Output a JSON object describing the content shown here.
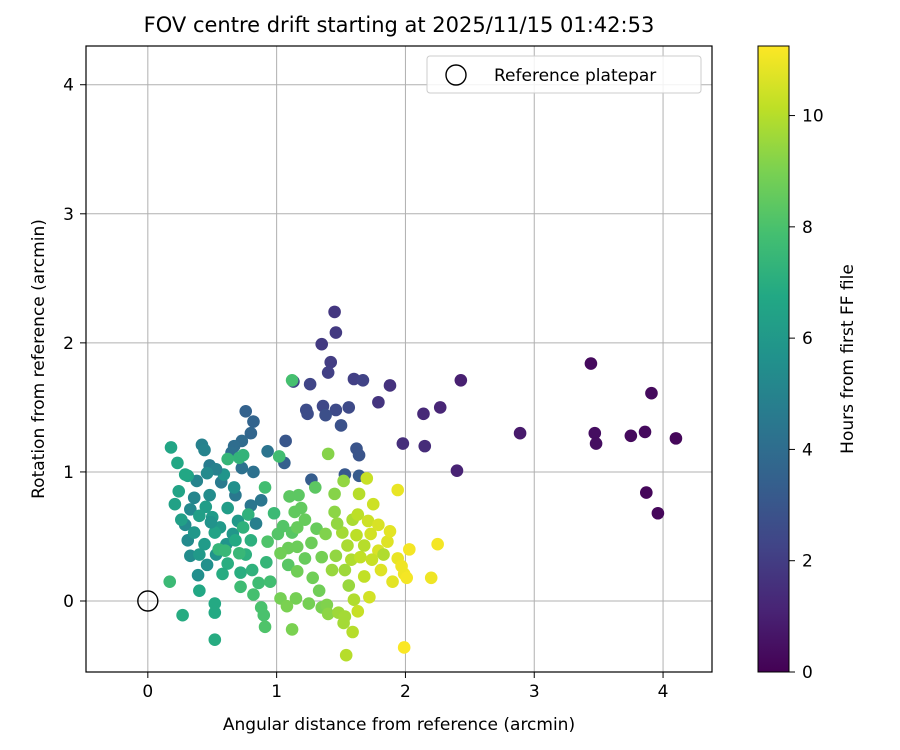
{
  "chart_data": {
    "type": "scatter",
    "title": "FOV centre drift starting at 2025/11/15 01:42:53",
    "xlabel": "Angular distance from reference (arcmin)",
    "ylabel": "Rotation from reference (arcmin)",
    "xlim": [
      -0.48,
      4.38
    ],
    "ylim": [
      -0.55,
      4.3
    ],
    "xticks": [
      0,
      1,
      2,
      3,
      4
    ],
    "yticks": [
      0,
      1,
      2,
      3,
      4
    ],
    "grid": true,
    "legend": {
      "position": "top-right",
      "entries": [
        {
          "label": "Reference platepar",
          "marker": "open-circle"
        }
      ]
    },
    "reference_point": {
      "x": 0,
      "y": 0,
      "label": "Reference platepar"
    },
    "colorbar": {
      "label": "Hours from first FF file",
      "colormap": "viridis",
      "range": [
        0,
        11.25
      ],
      "ticks": [
        0,
        2,
        4,
        6,
        8,
        10
      ]
    },
    "series": [
      {
        "name": "FOV centre drift",
        "points": [
          {
            "x": 3.44,
            "y": 1.84,
            "h": 0.3
          },
          {
            "x": 3.47,
            "y": 1.3,
            "h": 0.4
          },
          {
            "x": 3.48,
            "y": 1.22,
            "h": 0.4
          },
          {
            "x": 3.75,
            "y": 1.28,
            "h": 0.3
          },
          {
            "x": 3.86,
            "y": 1.31,
            "h": 0.3
          },
          {
            "x": 3.91,
            "y": 1.61,
            "h": 0.3
          },
          {
            "x": 3.87,
            "y": 0.84,
            "h": 0.2
          },
          {
            "x": 3.96,
            "y": 0.68,
            "h": 0.2
          },
          {
            "x": 4.1,
            "y": 1.26,
            "h": 0.2
          },
          {
            "x": 2.89,
            "y": 1.3,
            "h": 0.8
          },
          {
            "x": 2.43,
            "y": 1.71,
            "h": 1.0
          },
          {
            "x": 2.4,
            "y": 1.01,
            "h": 1.1
          },
          {
            "x": 2.27,
            "y": 1.5,
            "h": 1.2
          },
          {
            "x": 2.14,
            "y": 1.45,
            "h": 1.3
          },
          {
            "x": 2.15,
            "y": 1.2,
            "h": 1.4
          },
          {
            "x": 1.98,
            "y": 1.22,
            "h": 1.5
          },
          {
            "x": 1.88,
            "y": 1.67,
            "h": 1.6
          },
          {
            "x": 1.79,
            "y": 1.54,
            "h": 1.7
          },
          {
            "x": 1.45,
            "y": 2.24,
            "h": 1.8
          },
          {
            "x": 1.46,
            "y": 2.08,
            "h": 1.9
          },
          {
            "x": 1.35,
            "y": 1.99,
            "h": 1.9
          },
          {
            "x": 1.42,
            "y": 1.85,
            "h": 2.0
          },
          {
            "x": 1.4,
            "y": 1.77,
            "h": 2.1
          },
          {
            "x": 1.6,
            "y": 1.72,
            "h": 2.1
          },
          {
            "x": 1.67,
            "y": 1.71,
            "h": 2.2
          },
          {
            "x": 1.13,
            "y": 1.7,
            "h": 2.3
          },
          {
            "x": 1.26,
            "y": 1.68,
            "h": 2.3
          },
          {
            "x": 1.36,
            "y": 1.51,
            "h": 2.4
          },
          {
            "x": 1.46,
            "y": 1.48,
            "h": 2.5
          },
          {
            "x": 1.56,
            "y": 1.5,
            "h": 2.5
          },
          {
            "x": 1.23,
            "y": 1.48,
            "h": 2.6
          },
          {
            "x": 1.24,
            "y": 1.45,
            "h": 2.6
          },
          {
            "x": 1.38,
            "y": 1.44,
            "h": 2.7
          },
          {
            "x": 1.5,
            "y": 1.36,
            "h": 2.8
          },
          {
            "x": 1.62,
            "y": 1.18,
            "h": 2.9
          },
          {
            "x": 1.64,
            "y": 1.13,
            "h": 2.9
          },
          {
            "x": 1.07,
            "y": 1.24,
            "h": 3.0
          },
          {
            "x": 1.53,
            "y": 0.98,
            "h": 3.1
          },
          {
            "x": 1.64,
            "y": 0.97,
            "h": 3.2
          },
          {
            "x": 1.27,
            "y": 0.94,
            "h": 3.3
          },
          {
            "x": 1.06,
            "y": 1.07,
            "h": 3.4
          },
          {
            "x": 0.76,
            "y": 1.47,
            "h": 3.5
          },
          {
            "x": 0.82,
            "y": 1.39,
            "h": 3.6
          },
          {
            "x": 0.8,
            "y": 1.3,
            "h": 3.7
          },
          {
            "x": 0.73,
            "y": 1.24,
            "h": 3.9
          },
          {
            "x": 0.67,
            "y": 1.2,
            "h": 4.0
          },
          {
            "x": 0.65,
            "y": 1.15,
            "h": 4.1
          },
          {
            "x": 0.73,
            "y": 1.03,
            "h": 4.2
          },
          {
            "x": 0.82,
            "y": 1.0,
            "h": 4.2
          },
          {
            "x": 0.93,
            "y": 1.16,
            "h": 4.3
          },
          {
            "x": 0.88,
            "y": 0.78,
            "h": 4.4
          },
          {
            "x": 0.8,
            "y": 0.74,
            "h": 4.4
          },
          {
            "x": 0.68,
            "y": 0.82,
            "h": 4.5
          },
          {
            "x": 0.57,
            "y": 0.92,
            "h": 4.6
          },
          {
            "x": 0.48,
            "y": 1.05,
            "h": 4.7
          },
          {
            "x": 0.42,
            "y": 1.21,
            "h": 4.9
          },
          {
            "x": 0.44,
            "y": 1.17,
            "h": 5.0
          },
          {
            "x": 0.38,
            "y": 0.93,
            "h": 5.0
          },
          {
            "x": 0.36,
            "y": 0.8,
            "h": 5.1
          },
          {
            "x": 0.33,
            "y": 0.71,
            "h": 5.2
          },
          {
            "x": 0.29,
            "y": 0.59,
            "h": 5.3
          },
          {
            "x": 0.31,
            "y": 0.47,
            "h": 5.3
          },
          {
            "x": 0.33,
            "y": 0.35,
            "h": 5.4
          },
          {
            "x": 0.39,
            "y": 0.2,
            "h": 5.5
          },
          {
            "x": 0.46,
            "y": 0.28,
            "h": 5.6
          },
          {
            "x": 0.53,
            "y": 0.36,
            "h": 5.7
          },
          {
            "x": 0.61,
            "y": 0.44,
            "h": 5.8
          },
          {
            "x": 0.66,
            "y": 0.52,
            "h": 5.9
          },
          {
            "x": 0.7,
            "y": 0.62,
            "h": 6.0
          },
          {
            "x": 0.56,
            "y": 0.57,
            "h": 6.0
          },
          {
            "x": 0.5,
            "y": 0.65,
            "h": 6.1
          },
          {
            "x": 0.45,
            "y": 0.73,
            "h": 6.2
          },
          {
            "x": 0.4,
            "y": 0.66,
            "h": 6.3
          },
          {
            "x": 0.26,
            "y": 0.63,
            "h": 6.3
          },
          {
            "x": 0.21,
            "y": 0.75,
            "h": 6.4
          },
          {
            "x": 0.24,
            "y": 0.85,
            "h": 6.5
          },
          {
            "x": 0.31,
            "y": 0.97,
            "h": 6.5
          },
          {
            "x": 0.18,
            "y": 1.19,
            "h": 6.6
          },
          {
            "x": 0.23,
            "y": 1.07,
            "h": 6.7
          },
          {
            "x": 0.4,
            "y": 0.08,
            "h": 6.7
          },
          {
            "x": 0.52,
            "y": -0.02,
            "h": 6.8
          },
          {
            "x": 0.52,
            "y": -0.09,
            "h": 6.8
          },
          {
            "x": 0.27,
            "y": -0.11,
            "h": 6.9
          },
          {
            "x": 0.52,
            "y": -0.3,
            "h": 6.9
          },
          {
            "x": 0.62,
            "y": 0.29,
            "h": 7.0
          },
          {
            "x": 0.72,
            "y": 0.22,
            "h": 7.0
          },
          {
            "x": 0.76,
            "y": 0.36,
            "h": 7.1
          },
          {
            "x": 0.8,
            "y": 0.47,
            "h": 7.1
          },
          {
            "x": 0.74,
            "y": 0.57,
            "h": 7.2
          },
          {
            "x": 0.78,
            "y": 0.67,
            "h": 7.2
          },
          {
            "x": 0.71,
            "y": 1.11,
            "h": 7.3
          },
          {
            "x": 0.74,
            "y": 1.13,
            "h": 7.3
          },
          {
            "x": 0.62,
            "y": 1.1,
            "h": 7.4
          },
          {
            "x": 0.55,
            "y": 0.4,
            "h": 7.4
          },
          {
            "x": 0.6,
            "y": 0.39,
            "h": 7.5
          },
          {
            "x": 0.71,
            "y": 0.37,
            "h": 7.5
          },
          {
            "x": 0.17,
            "y": 0.15,
            "h": 7.6
          },
          {
            "x": 0.72,
            "y": 0.11,
            "h": 7.7
          },
          {
            "x": 0.86,
            "y": 0.14,
            "h": 7.7
          },
          {
            "x": 0.95,
            "y": 0.15,
            "h": 7.8
          },
          {
            "x": 0.82,
            "y": 0.05,
            "h": 7.9
          },
          {
            "x": 0.88,
            "y": -0.05,
            "h": 8.0
          },
          {
            "x": 0.9,
            "y": -0.11,
            "h": 8.0
          },
          {
            "x": 0.91,
            "y": -0.2,
            "h": 8.1
          },
          {
            "x": 0.93,
            "y": 0.46,
            "h": 8.1
          },
          {
            "x": 1.01,
            "y": 0.52,
            "h": 8.2
          },
          {
            "x": 1.05,
            "y": 0.58,
            "h": 8.2
          },
          {
            "x": 1.09,
            "y": 0.28,
            "h": 8.3
          },
          {
            "x": 1.12,
            "y": 0.53,
            "h": 8.3
          },
          {
            "x": 1.12,
            "y": 1.71,
            "h": 7.9
          },
          {
            "x": 0.91,
            "y": 0.88,
            "h": 7.8
          },
          {
            "x": 1.02,
            "y": 1.12,
            "h": 7.8
          },
          {
            "x": 1.1,
            "y": 0.81,
            "h": 8.4
          },
          {
            "x": 1.17,
            "y": 0.82,
            "h": 8.4
          },
          {
            "x": 1.14,
            "y": 0.69,
            "h": 8.5
          },
          {
            "x": 1.19,
            "y": 0.72,
            "h": 8.5
          },
          {
            "x": 1.22,
            "y": 0.63,
            "h": 8.6
          },
          {
            "x": 1.16,
            "y": 0.57,
            "h": 8.6
          },
          {
            "x": 1.09,
            "y": 0.41,
            "h": 8.7
          },
          {
            "x": 1.16,
            "y": 0.42,
            "h": 8.7
          },
          {
            "x": 1.03,
            "y": 0.37,
            "h": 8.8
          },
          {
            "x": 1.16,
            "y": 0.23,
            "h": 8.8
          },
          {
            "x": 1.03,
            "y": 0.02,
            "h": 8.9
          },
          {
            "x": 1.15,
            "y": 0.02,
            "h": 8.9
          },
          {
            "x": 1.08,
            "y": -0.04,
            "h": 9.0
          },
          {
            "x": 1.12,
            "y": -0.22,
            "h": 9.0
          },
          {
            "x": 1.3,
            "y": 0.88,
            "h": 8.4
          },
          {
            "x": 1.31,
            "y": 0.56,
            "h": 8.6
          },
          {
            "x": 1.27,
            "y": 0.45,
            "h": 8.7
          },
          {
            "x": 1.28,
            "y": 0.18,
            "h": 8.8
          },
          {
            "x": 1.35,
            "y": 0.34,
            "h": 8.9
          },
          {
            "x": 1.35,
            "y": -0.05,
            "h": 9.0
          },
          {
            "x": 1.39,
            "y": -0.03,
            "h": 9.1
          },
          {
            "x": 1.4,
            "y": 1.14,
            "h": 9.2
          },
          {
            "x": 1.45,
            "y": 0.83,
            "h": 9.2
          },
          {
            "x": 1.45,
            "y": 0.69,
            "h": 9.3
          },
          {
            "x": 1.4,
            "y": -0.1,
            "h": 9.3
          },
          {
            "x": 1.52,
            "y": 0.93,
            "h": 9.4
          },
          {
            "x": 1.46,
            "y": 0.35,
            "h": 9.4
          },
          {
            "x": 1.43,
            "y": 0.24,
            "h": 9.5
          },
          {
            "x": 1.53,
            "y": 0.24,
            "h": 9.6
          },
          {
            "x": 1.48,
            "y": -0.09,
            "h": 9.6
          },
          {
            "x": 1.53,
            "y": -0.12,
            "h": 9.7
          },
          {
            "x": 1.52,
            "y": -0.17,
            "h": 9.7
          },
          {
            "x": 1.55,
            "y": 0.43,
            "h": 9.8
          },
          {
            "x": 1.59,
            "y": 0.63,
            "h": 9.8
          },
          {
            "x": 1.58,
            "y": 0.32,
            "h": 9.9
          },
          {
            "x": 1.6,
            "y": 0.01,
            "h": 9.9
          },
          {
            "x": 1.59,
            "y": -0.24,
            "h": 10.0
          },
          {
            "x": 1.54,
            "y": -0.42,
            "h": 10.0
          },
          {
            "x": 1.64,
            "y": 0.83,
            "h": 10.0
          },
          {
            "x": 1.63,
            "y": 0.67,
            "h": 10.1
          },
          {
            "x": 1.62,
            "y": 0.51,
            "h": 10.1
          },
          {
            "x": 1.65,
            "y": 0.34,
            "h": 10.2
          },
          {
            "x": 1.68,
            "y": 0.19,
            "h": 10.2
          },
          {
            "x": 1.63,
            "y": -0.08,
            "h": 10.3
          },
          {
            "x": 1.7,
            "y": 0.95,
            "h": 10.3
          },
          {
            "x": 1.71,
            "y": 0.62,
            "h": 10.4
          },
          {
            "x": 1.75,
            "y": 0.75,
            "h": 10.4
          },
          {
            "x": 1.73,
            "y": 0.52,
            "h": 10.5
          },
          {
            "x": 1.72,
            "y": 0.03,
            "h": 10.5
          },
          {
            "x": 1.79,
            "y": 0.59,
            "h": 10.6
          },
          {
            "x": 1.79,
            "y": 0.39,
            "h": 10.6
          },
          {
            "x": 1.81,
            "y": 0.24,
            "h": 10.7
          },
          {
            "x": 1.86,
            "y": 0.46,
            "h": 10.7
          },
          {
            "x": 1.88,
            "y": 0.54,
            "h": 10.8
          },
          {
            "x": 1.9,
            "y": 0.15,
            "h": 10.8
          },
          {
            "x": 1.94,
            "y": 0.86,
            "h": 10.9
          },
          {
            "x": 1.94,
            "y": 0.33,
            "h": 10.9
          },
          {
            "x": 1.97,
            "y": 0.27,
            "h": 11.0
          },
          {
            "x": 1.99,
            "y": 0.21,
            "h": 11.0
          },
          {
            "x": 2.01,
            "y": 0.18,
            "h": 11.1
          },
          {
            "x": 2.03,
            "y": 0.4,
            "h": 11.1
          },
          {
            "x": 1.99,
            "y": -0.36,
            "h": 11.2
          },
          {
            "x": 2.2,
            "y": 0.18,
            "h": 11.0
          },
          {
            "x": 2.25,
            "y": 0.44,
            "h": 11.1
          },
          {
            "x": 1.83,
            "y": 0.36,
            "h": 9.9
          },
          {
            "x": 1.51,
            "y": 0.53,
            "h": 9.7
          },
          {
            "x": 1.47,
            "y": 0.6,
            "h": 9.4
          },
          {
            "x": 1.38,
            "y": 0.52,
            "h": 9.1
          },
          {
            "x": 1.68,
            "y": 0.43,
            "h": 10.0
          },
          {
            "x": 1.74,
            "y": 0.32,
            "h": 10.3
          },
          {
            "x": 0.59,
            "y": 0.98,
            "h": 5.8
          },
          {
            "x": 0.62,
            "y": 0.72,
            "h": 6.2
          },
          {
            "x": 0.48,
            "y": 0.82,
            "h": 5.4
          },
          {
            "x": 0.52,
            "y": 0.53,
            "h": 6.5
          },
          {
            "x": 0.44,
            "y": 0.44,
            "h": 6.1
          },
          {
            "x": 0.36,
            "y": 0.53,
            "h": 5.9
          },
          {
            "x": 0.67,
            "y": 0.88,
            "h": 5.6
          },
          {
            "x": 0.58,
            "y": 0.21,
            "h": 6.9
          },
          {
            "x": 0.84,
            "y": 0.6,
            "h": 4.8
          },
          {
            "x": 0.98,
            "y": 0.68,
            "h": 7.6
          },
          {
            "x": 0.92,
            "y": 0.3,
            "h": 7.4
          },
          {
            "x": 1.22,
            "y": 0.33,
            "h": 8.6
          },
          {
            "x": 1.33,
            "y": 0.08,
            "h": 8.8
          },
          {
            "x": 1.56,
            "y": 0.12,
            "h": 9.5
          },
          {
            "x": 1.25,
            "y": -0.02,
            "h": 8.9
          },
          {
            "x": 0.81,
            "y": 0.24,
            "h": 7.2
          },
          {
            "x": 0.68,
            "y": 0.47,
            "h": 6.8
          },
          {
            "x": 0.4,
            "y": 0.36,
            "h": 6.0
          },
          {
            "x": 0.29,
            "y": 0.98,
            "h": 6.7
          },
          {
            "x": 0.53,
            "y": 1.02,
            "h": 4.9
          },
          {
            "x": 0.46,
            "y": 0.99,
            "h": 5.3
          },
          {
            "x": 0.49,
            "y": 0.61,
            "h": 5.7
          }
        ]
      }
    ]
  }
}
